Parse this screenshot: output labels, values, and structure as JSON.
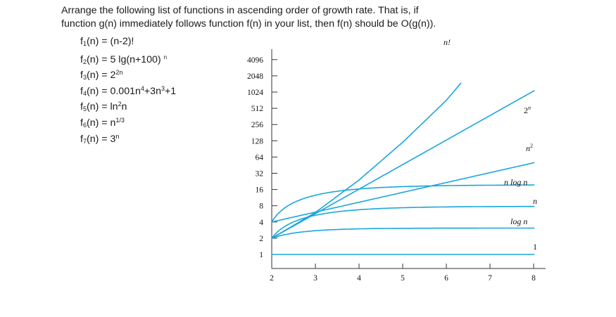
{
  "problem": {
    "instruction": "Arrange the following list of functions in ascending order of growth rate. That is, if function g(n) immediately follows function f(n) in your list, then f(n) should be O(g(n)).",
    "functions": [
      {
        "name": "f",
        "index": "1",
        "before": "(n) = (n-2)!",
        "sup": "",
        "after": ""
      },
      {
        "name": "f",
        "index": "2",
        "before": "(n) = 5 lg(n+100)",
        "sup": "",
        "after": "",
        "mark": "n"
      },
      {
        "name": "f",
        "index": "3",
        "before": "(n) = 2",
        "sup": "2n",
        "after": ""
      },
      {
        "name": "f",
        "index": "4",
        "before": "(n) = 0.001n",
        "sup": "4",
        "after": "+3n",
        "sup2": "3",
        "after2": "+1"
      },
      {
        "name": "f",
        "index": "5",
        "before": "(n) = ln",
        "sup": "2",
        "after": "n"
      },
      {
        "name": "f",
        "index": "6",
        "before": "(n) = n",
        "sup": "1/3",
        "after": ""
      },
      {
        "name": "f",
        "index": "7",
        "before": "(n) = 3",
        "sup": "n",
        "after": ""
      }
    ]
  },
  "chart_data": {
    "type": "line",
    "title": "",
    "xlabel": "",
    "ylabel": "",
    "x_scale": "linear",
    "y_scale": "log2",
    "xlim": [
      2,
      8
    ],
    "ylim": [
      0.65,
      8192
    ],
    "x_ticks": [
      "2",
      "3",
      "4",
      "5",
      "6",
      "7",
      "8"
    ],
    "x_tick_values": [
      2,
      3,
      4,
      5,
      6,
      7,
      8
    ],
    "y_ticks": [
      "1",
      "2",
      "4",
      "8",
      "16",
      "32",
      "64",
      "128",
      "256",
      "512",
      "1024",
      "2048",
      "4096"
    ],
    "y_tick_values": [
      1,
      2,
      4,
      8,
      16,
      32,
      64,
      128,
      256,
      512,
      1024,
      2048,
      4096
    ],
    "line_color": "#1aa6dc",
    "axis_color": "#333333",
    "series": [
      {
        "name": "1",
        "label": "1",
        "fn": "const",
        "x": [
          2,
          8
        ],
        "values": [
          1,
          1
        ]
      },
      {
        "name": "log n",
        "label": "log n",
        "fn": "logn",
        "x": [
          2,
          3,
          4,
          5,
          6,
          7,
          8
        ],
        "values": [
          2.0,
          2.7,
          2.9,
          3.0,
          3.0,
          3.05,
          3.05
        ]
      },
      {
        "name": "n",
        "label": "n",
        "fn": "n",
        "x": [
          2,
          3,
          4,
          5,
          6,
          7,
          8
        ],
        "values": [
          2.0,
          4.8,
          6.3,
          7.0,
          7.4,
          7.6,
          7.7
        ]
      },
      {
        "name": "n log n",
        "label": "n log n",
        "fn": "nlogn",
        "x": [
          2,
          3,
          4,
          5,
          6,
          7,
          8
        ],
        "values": [
          4.0,
          11.5,
          15.5,
          17.5,
          18.5,
          19.0,
          19.3
        ]
      },
      {
        "name": "n^2",
        "label": "n2",
        "fn": "n2",
        "x": [
          2,
          3,
          4,
          5,
          6,
          7,
          8
        ],
        "values": [
          4.0,
          10.6,
          17.0,
          23.8,
          31.7,
          40.2,
          50.0
        ]
      },
      {
        "name": "2^n",
        "label": "2n",
        "fn": "2n",
        "x": [
          2,
          3,
          4,
          5,
          6,
          7,
          8
        ],
        "values": [
          2.0,
          4.8,
          16.5,
          45.0,
          124,
          340,
          930
        ]
      },
      {
        "name": "n!",
        "label": "n!",
        "fn": "fact",
        "x": [
          2,
          3,
          4,
          5,
          6
        ],
        "values": [
          2,
          6,
          24,
          120,
          720
        ]
      }
    ],
    "annotations": [
      "n!",
      "2n",
      "n2",
      "n log n",
      "n",
      "log n",
      "1"
    ]
  }
}
